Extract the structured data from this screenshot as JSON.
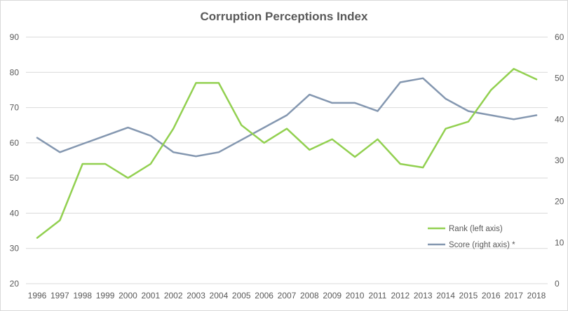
{
  "chart_data": {
    "type": "line",
    "title": "Corruption Perceptions Index",
    "xlabel": "",
    "ylabel": "",
    "x": [
      "1996",
      "1997",
      "1998",
      "1999",
      "2000",
      "2001",
      "2002",
      "2003",
      "2004",
      "2005",
      "2006",
      "2007",
      "2008",
      "2009",
      "2010",
      "2011",
      "2012",
      "2013",
      "2014",
      "2015",
      "2016",
      "2017",
      "2018"
    ],
    "y_left_ticks": [
      "20",
      "30",
      "40",
      "50",
      "60",
      "70",
      "80",
      "90"
    ],
    "y_right_ticks": [
      "0",
      "10",
      "20",
      "30",
      "40",
      "50",
      "60"
    ],
    "ylim_left": [
      20,
      90
    ],
    "ylim_right": [
      0,
      60
    ],
    "grid": "horizontal",
    "legend_position": "bottom-right",
    "series": [
      {
        "name": "Rank (left axis)",
        "axis": "left",
        "color": "#92d050",
        "values": [
          33,
          38,
          54,
          54,
          50,
          54,
          64,
          77,
          77,
          65,
          60,
          64,
          58,
          61,
          56,
          61,
          54,
          53,
          64,
          66,
          75,
          81,
          78
        ]
      },
      {
        "name": "Score (right axis) *",
        "axis": "right",
        "color": "#8497b0",
        "values": [
          35.5,
          32,
          34,
          36,
          38,
          36,
          32,
          31,
          32,
          35,
          38,
          41,
          46,
          44,
          44,
          42,
          49,
          50,
          45,
          42,
          41,
          40,
          41
        ]
      }
    ]
  }
}
